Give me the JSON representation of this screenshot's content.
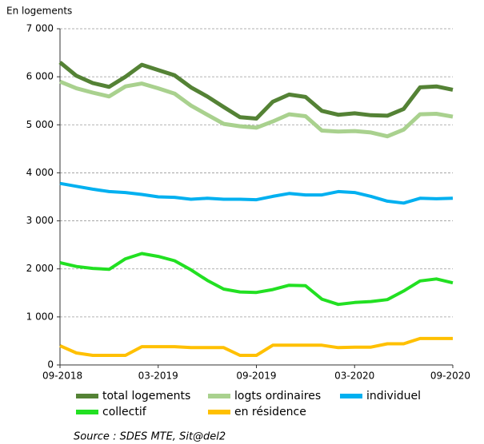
{
  "chart_data": {
    "type": "line",
    "y_label": "En logements",
    "source": "Source : SDES MTE, Sit@del2",
    "categories": [
      "09-2018",
      null,
      null,
      null,
      null,
      null,
      "03-2019",
      null,
      null,
      null,
      null,
      null,
      "09-2019",
      null,
      null,
      null,
      null,
      null,
      "03-2020",
      null,
      null,
      null,
      null,
      null,
      "09-2020"
    ],
    "ylim": [
      0,
      7000
    ],
    "yticks": [
      0,
      {
        "value": 1000,
        "label": "1 000"
      },
      {
        "value": 2000,
        "label": "2 000"
      },
      {
        "value": 3000,
        "label": "3 000"
      },
      {
        "value": 4000,
        "label": "4 000"
      },
      {
        "value": 5000,
        "label": "5 000"
      },
      {
        "value": 6000,
        "label": "6 000"
      },
      {
        "value": 7000,
        "label": "7 000"
      }
    ],
    "grid": true,
    "series": [
      {
        "name": "total logements",
        "color": "#548235",
        "values": [
          6300,
          6020,
          5870,
          5790,
          6000,
          6250,
          6140,
          6030,
          5780,
          5590,
          5370,
          5160,
          5130,
          5480,
          5630,
          5580,
          5290,
          5210,
          5240,
          5200,
          5190,
          5330,
          5780,
          5800,
          5730
        ]
      },
      {
        "name": "logts ordinaires",
        "color": "#a9d18e",
        "values": [
          5900,
          5760,
          5670,
          5590,
          5800,
          5860,
          5760,
          5650,
          5400,
          5210,
          5020,
          4970,
          4940,
          5070,
          5220,
          5180,
          4880,
          4860,
          4870,
          4840,
          4760,
          4900,
          5220,
          5230,
          5170
        ]
      },
      {
        "name": "individuel",
        "color": "#00b0f0",
        "values": [
          3780,
          3720,
          3660,
          3610,
          3590,
          3550,
          3500,
          3490,
          3450,
          3470,
          3450,
          3450,
          3440,
          3510,
          3570,
          3540,
          3540,
          3610,
          3590,
          3510,
          3410,
          3370,
          3470,
          3460,
          3470
        ]
      },
      {
        "name": "collectif",
        "color": "#22e022",
        "values": [
          2130,
          2050,
          2010,
          1990,
          2210,
          2320,
          2260,
          2170,
          1980,
          1760,
          1580,
          1520,
          1510,
          1570,
          1660,
          1650,
          1370,
          1260,
          1300,
          1320,
          1360,
          1540,
          1750,
          1790,
          1710
        ]
      },
      {
        "name": "en résidence",
        "color": "#ffc000",
        "values": [
          400,
          250,
          200,
          200,
          200,
          380,
          380,
          380,
          360,
          360,
          360,
          200,
          200,
          410,
          410,
          410,
          410,
          360,
          370,
          370,
          440,
          440,
          550,
          550,
          550
        ]
      }
    ]
  }
}
